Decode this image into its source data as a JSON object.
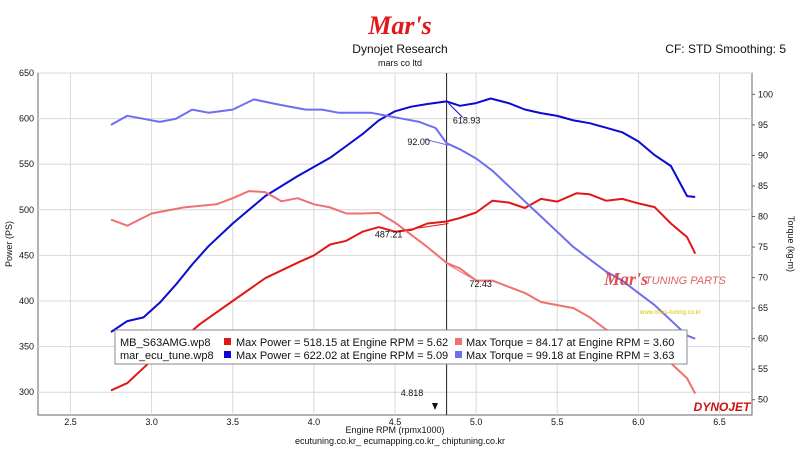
{
  "header": {
    "logo_text": "Mar's",
    "title": "Dynojet Research",
    "subtitle": "mars co ltd",
    "cf_label": "CF: STD Smoothing: 5"
  },
  "footer": {
    "links": "ecutuning.co.kr_ ecumapping.co.kr_ chiptuning.co.kr"
  },
  "brand": {
    "dynojet": "DYNOJET",
    "watermark": "TUNING PARTS",
    "watermark_url": "www.mars-tuning.co.kr"
  },
  "colors": {
    "stock_power": "#e01818",
    "stock_torque": "#f07070",
    "tune_power": "#0a0ad0",
    "tune_torque": "#6e6ef0",
    "cursor": "#222222"
  },
  "chart_data": {
    "type": "line",
    "xlabel": "Engine RPM (rpmx1000)",
    "ylabel": "Power (PS)",
    "y2label": "Torque (kg-m)",
    "xlim": [
      2.3,
      6.7
    ],
    "ylim": [
      275,
      650
    ],
    "y2lim": [
      47.5,
      103.5
    ],
    "x_ticks": [
      2.5,
      3.0,
      3.5,
      4.0,
      4.5,
      5.0,
      5.5,
      6.0,
      6.5
    ],
    "y_ticks": [
      300,
      350,
      400,
      450,
      500,
      550,
      600,
      650
    ],
    "y2_ticks": [
      50,
      55,
      60,
      65,
      70,
      75,
      80,
      85,
      90,
      95,
      100
    ],
    "grid": true,
    "cursor": {
      "x": 4.818,
      "label": "4.818"
    },
    "annotations": [
      {
        "series": 1,
        "text": "618.93"
      },
      {
        "series": 3,
        "text": "92.00"
      },
      {
        "series": 0,
        "text": "487.21"
      },
      {
        "series": 2,
        "text": "72.43"
      }
    ],
    "legend_rows": [
      {
        "file": "MB_S63AMG.wp8",
        "power": "Max Power = 518.15 at Engine RPM = 5.62",
        "torque": "Max Torque = 84.17 at Engine RPM = 3.60"
      },
      {
        "file": "mar_ecu_tune.wp8",
        "power": "Max Power = 622.02 at Engine RPM = 5.09",
        "torque": "Max Torque = 99.18 at Engine RPM = 3.63"
      }
    ],
    "series": [
      {
        "name": "MB_S63AMG.wp8",
        "axis": "left",
        "x": [
          2.75,
          2.85,
          3.0,
          3.1,
          3.2,
          3.3,
          3.5,
          3.7,
          3.9,
          4.0,
          4.1,
          4.2,
          4.3,
          4.4,
          4.5,
          4.6,
          4.7,
          4.818,
          4.9,
          5.0,
          5.1,
          5.2,
          5.3,
          5.4,
          5.5,
          5.62,
          5.7,
          5.8,
          5.9,
          6.0,
          6.1,
          6.2,
          6.3,
          6.35
        ],
        "values": [
          302,
          310,
          335,
          352,
          360,
          375,
          400,
          425,
          442,
          450,
          462,
          466,
          476,
          481,
          476,
          478,
          485,
          487.2,
          491,
          497,
          510,
          508,
          502,
          512,
          509,
          518.2,
          517,
          510,
          512,
          507,
          503,
          485,
          470,
          452
        ]
      },
      {
        "name": "mar_ecu_tune.wp8",
        "axis": "left",
        "x": [
          2.75,
          2.85,
          2.95,
          3.05,
          3.15,
          3.25,
          3.35,
          3.5,
          3.7,
          3.9,
          4.1,
          4.2,
          4.3,
          4.4,
          4.5,
          4.6,
          4.7,
          4.818,
          4.9,
          5.0,
          5.09,
          5.2,
          5.3,
          5.4,
          5.5,
          5.6,
          5.7,
          5.8,
          5.9,
          6.0,
          6.1,
          6.2,
          6.3,
          6.35
        ],
        "values": [
          366,
          378,
          382,
          398,
          418,
          440,
          460,
          485,
          515,
          537,
          557,
          570,
          583,
          598,
          608,
          613,
          616,
          618.9,
          614,
          617,
          622,
          617,
          610,
          606,
          603,
          598,
          595,
          590,
          585,
          575,
          560,
          548,
          515,
          514
        ]
      },
      {
        "name": "MB_S63AMG.wp8",
        "axis": "right",
        "x": [
          2.75,
          2.85,
          3.0,
          3.2,
          3.4,
          3.5,
          3.6,
          3.7,
          3.8,
          3.9,
          4.0,
          4.1,
          4.2,
          4.3,
          4.4,
          4.5,
          4.6,
          4.7,
          4.818,
          4.9,
          5.0,
          5.1,
          5.2,
          5.3,
          5.4,
          5.5,
          5.6,
          5.7,
          5.8,
          5.9,
          6.0,
          6.1,
          6.2,
          6.3,
          6.35
        ],
        "values": [
          79.5,
          78.5,
          80.5,
          81.5,
          82,
          83,
          84.17,
          84,
          82.5,
          83,
          82,
          81.5,
          80.5,
          80.5,
          80.6,
          79,
          77,
          75,
          72.4,
          71.5,
          69.5,
          69.5,
          68.5,
          67.5,
          66,
          65.5,
          65,
          63.5,
          61.5,
          60,
          58.5,
          57.5,
          56,
          53.5,
          51
        ]
      },
      {
        "name": "mar_ecu_tune.wp8",
        "axis": "right",
        "x": [
          2.75,
          2.85,
          2.95,
          3.05,
          3.15,
          3.25,
          3.35,
          3.5,
          3.63,
          3.75,
          3.85,
          3.95,
          4.05,
          4.15,
          4.25,
          4.35,
          4.45,
          4.55,
          4.65,
          4.75,
          4.818,
          4.9,
          5.0,
          5.1,
          5.2,
          5.3,
          5.4,
          5.5,
          5.6,
          5.7,
          5.8,
          5.9,
          6.0,
          6.1,
          6.2,
          6.3,
          6.35
        ],
        "values": [
          95,
          96.5,
          96,
          95.5,
          96,
          97.5,
          97,
          97.5,
          99.18,
          98.5,
          98,
          97.5,
          97.5,
          97,
          97,
          97,
          96.5,
          96,
          95.5,
          94.5,
          92,
          91,
          89.5,
          87.5,
          85,
          82.5,
          80,
          77.5,
          75,
          73,
          71,
          69.5,
          67.5,
          65.5,
          63,
          60.5,
          60
        ]
      }
    ]
  }
}
